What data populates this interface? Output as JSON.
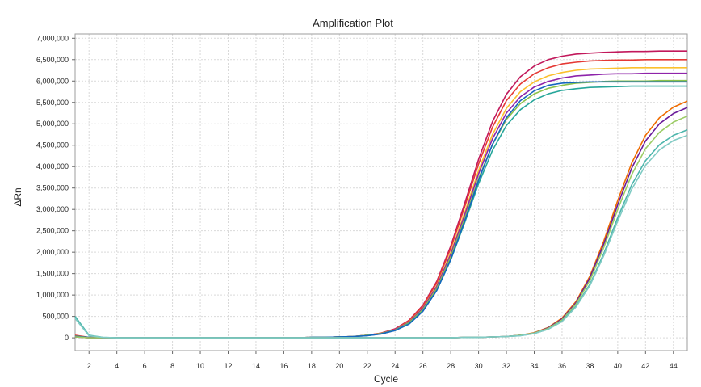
{
  "chart_data": {
    "type": "line",
    "title": "Amplification Plot",
    "xlabel": "Cycle",
    "ylabel": "ΔRn",
    "xlim": [
      1,
      45
    ],
    "ylim": [
      -300000,
      7100000
    ],
    "x_ticks": [
      2,
      4,
      6,
      8,
      10,
      12,
      14,
      16,
      18,
      20,
      22,
      24,
      26,
      28,
      30,
      32,
      34,
      36,
      38,
      40,
      42,
      44
    ],
    "y_ticks": [
      0,
      500000,
      1000000,
      1500000,
      2000000,
      2500000,
      3000000,
      3500000,
      4000000,
      4500000,
      5000000,
      5500000,
      6000000,
      6500000,
      7000000
    ],
    "y_tick_labels": [
      "0",
      "500,000",
      "1,000,000",
      "1,500,000",
      "2,000,000",
      "2,500,000",
      "3,000,000",
      "3,500,000",
      "4,000,000",
      "4,500,000",
      "5,000,000",
      "5,500,000",
      "6,000,000",
      "6,500,000",
      "7,000,000"
    ],
    "grid": true,
    "x": [
      1,
      2,
      3,
      4,
      5,
      6,
      7,
      8,
      9,
      10,
      11,
      12,
      13,
      14,
      15,
      16,
      17,
      18,
      19,
      20,
      21,
      22,
      23,
      24,
      25,
      26,
      27,
      28,
      29,
      30,
      31,
      32,
      33,
      34,
      35,
      36,
      37,
      38,
      39,
      40,
      41,
      42,
      43,
      44,
      45
    ],
    "series": [
      {
        "color": "#c2185b",
        "values": [
          50000,
          10000,
          0,
          0,
          0,
          0,
          0,
          0,
          0,
          0,
          0,
          0,
          0,
          0,
          0,
          0,
          0,
          10000,
          10000,
          20000,
          30000,
          60000,
          110000,
          210000,
          410000,
          760000,
          1320000,
          2140000,
          3140000,
          4170000,
          5050000,
          5690000,
          6100000,
          6350000,
          6500000,
          6580000,
          6630000,
          6650000,
          6670000,
          6680000,
          6690000,
          6690000,
          6700000,
          6700000,
          6700000
        ]
      },
      {
        "color": "#e53935",
        "values": [
          60000,
          10000,
          0,
          0,
          0,
          0,
          0,
          0,
          0,
          0,
          0,
          0,
          0,
          0,
          0,
          0,
          0,
          10000,
          10000,
          20000,
          30000,
          60000,
          110000,
          200000,
          400000,
          740000,
          1290000,
          2090000,
          3060000,
          4060000,
          4920000,
          5540000,
          5930000,
          6170000,
          6310000,
          6400000,
          6440000,
          6470000,
          6480000,
          6490000,
          6490000,
          6500000,
          6500000,
          6500000,
          6500000
        ]
      },
      {
        "color": "#fbc02d",
        "values": [
          30000,
          10000,
          0,
          0,
          0,
          0,
          0,
          0,
          0,
          0,
          0,
          0,
          0,
          0,
          0,
          0,
          0,
          10000,
          10000,
          20000,
          30000,
          60000,
          100000,
          190000,
          370000,
          700000,
          1220000,
          1990000,
          2930000,
          3910000,
          4750000,
          5360000,
          5750000,
          5980000,
          6120000,
          6200000,
          6250000,
          6280000,
          6290000,
          6300000,
          6310000,
          6310000,
          6310000,
          6310000,
          6310000
        ]
      },
      {
        "color": "#8e24aa",
        "values": [
          20000,
          10000,
          0,
          0,
          0,
          0,
          0,
          0,
          0,
          0,
          0,
          0,
          0,
          0,
          0,
          0,
          0,
          10000,
          10000,
          20000,
          30000,
          60000,
          100000,
          190000,
          360000,
          690000,
          1200000,
          1950000,
          2870000,
          3830000,
          4650000,
          5250000,
          5630000,
          5860000,
          5990000,
          6070000,
          6120000,
          6140000,
          6160000,
          6170000,
          6170000,
          6180000,
          6180000,
          6180000,
          6180000
        ]
      },
      {
        "color": "#8bc34a",
        "values": [
          20000,
          10000,
          0,
          0,
          0,
          0,
          0,
          0,
          0,
          0,
          0,
          0,
          0,
          0,
          0,
          0,
          0,
          10000,
          10000,
          20000,
          30000,
          60000,
          100000,
          180000,
          350000,
          660000,
          1160000,
          1890000,
          2790000,
          3720000,
          4520000,
          5100000,
          5470000,
          5700000,
          5830000,
          5900000,
          5950000,
          5970000,
          5990000,
          6000000,
          6000000,
          6000000,
          6010000,
          6010000,
          6010000
        ]
      },
      {
        "color": "#26a69a",
        "values": [
          40000,
          10000,
          0,
          0,
          0,
          0,
          0,
          0,
          0,
          0,
          0,
          0,
          0,
          0,
          0,
          0,
          0,
          10000,
          10000,
          20000,
          30000,
          50000,
          90000,
          170000,
          330000,
          630000,
          1110000,
          1820000,
          2690000,
          3600000,
          4380000,
          4960000,
          5330000,
          5560000,
          5700000,
          5780000,
          5820000,
          5850000,
          5860000,
          5870000,
          5880000,
          5880000,
          5880000,
          5880000,
          5880000
        ]
      },
      {
        "color": "#1565c0",
        "values": [
          20000,
          10000,
          0,
          0,
          0,
          0,
          0,
          0,
          0,
          0,
          0,
          0,
          0,
          0,
          0,
          0,
          0,
          10000,
          10000,
          20000,
          30000,
          50000,
          90000,
          170000,
          320000,
          620000,
          1110000,
          1830000,
          2730000,
          3680000,
          4520000,
          5140000,
          5540000,
          5770000,
          5900000,
          5950000,
          5970000,
          5980000,
          5980000,
          5980000,
          5980000,
          5980000,
          5980000,
          5980000,
          5980000
        ]
      },
      {
        "color": "#ef6c00",
        "values": [
          20000,
          0,
          0,
          0,
          0,
          0,
          0,
          0,
          0,
          0,
          0,
          0,
          0,
          0,
          0,
          0,
          0,
          0,
          0,
          0,
          0,
          0,
          0,
          0,
          0,
          0,
          0,
          0,
          10000,
          10000,
          20000,
          30000,
          60000,
          120000,
          240000,
          460000,
          850000,
          1440000,
          2260000,
          3210000,
          4080000,
          4730000,
          5140000,
          5390000,
          5530000
        ]
      },
      {
        "color": "#6a1b9a",
        "values": [
          20000,
          0,
          0,
          0,
          0,
          0,
          0,
          0,
          0,
          0,
          0,
          0,
          0,
          0,
          0,
          0,
          0,
          0,
          0,
          0,
          0,
          0,
          0,
          0,
          0,
          0,
          0,
          0,
          10000,
          10000,
          20000,
          30000,
          60000,
          110000,
          230000,
          440000,
          820000,
          1400000,
          2190000,
          3110000,
          3960000,
          4600000,
          5000000,
          5240000,
          5380000
        ]
      },
      {
        "color": "#9ccc65",
        "values": [
          20000,
          0,
          0,
          0,
          0,
          0,
          0,
          0,
          0,
          0,
          0,
          0,
          0,
          0,
          0,
          0,
          0,
          0,
          0,
          0,
          0,
          0,
          0,
          0,
          0,
          0,
          0,
          0,
          10000,
          10000,
          20000,
          30000,
          60000,
          110000,
          220000,
          420000,
          790000,
          1340000,
          2110000,
          3000000,
          3810000,
          4420000,
          4800000,
          5040000,
          5180000
        ]
      },
      {
        "color": "#4db6ac",
        "values": [
          500000,
          60000,
          10000,
          0,
          0,
          0,
          0,
          0,
          0,
          0,
          0,
          0,
          0,
          0,
          0,
          0,
          0,
          0,
          0,
          0,
          0,
          0,
          0,
          0,
          0,
          0,
          0,
          0,
          10000,
          10000,
          20000,
          30000,
          50000,
          100000,
          200000,
          390000,
          740000,
          1250000,
          1970000,
          2810000,
          3570000,
          4140000,
          4510000,
          4730000,
          4860000
        ]
      },
      {
        "color": "#80cbc4",
        "values": [
          450000,
          50000,
          10000,
          0,
          0,
          0,
          0,
          0,
          0,
          0,
          0,
          0,
          0,
          0,
          0,
          0,
          0,
          0,
          0,
          0,
          0,
          0,
          0,
          0,
          0,
          0,
          0,
          0,
          10000,
          10000,
          20000,
          30000,
          50000,
          100000,
          200000,
          380000,
          720000,
          1220000,
          1920000,
          2730000,
          3470000,
          4030000,
          4390000,
          4610000,
          4730000
        ]
      }
    ]
  }
}
